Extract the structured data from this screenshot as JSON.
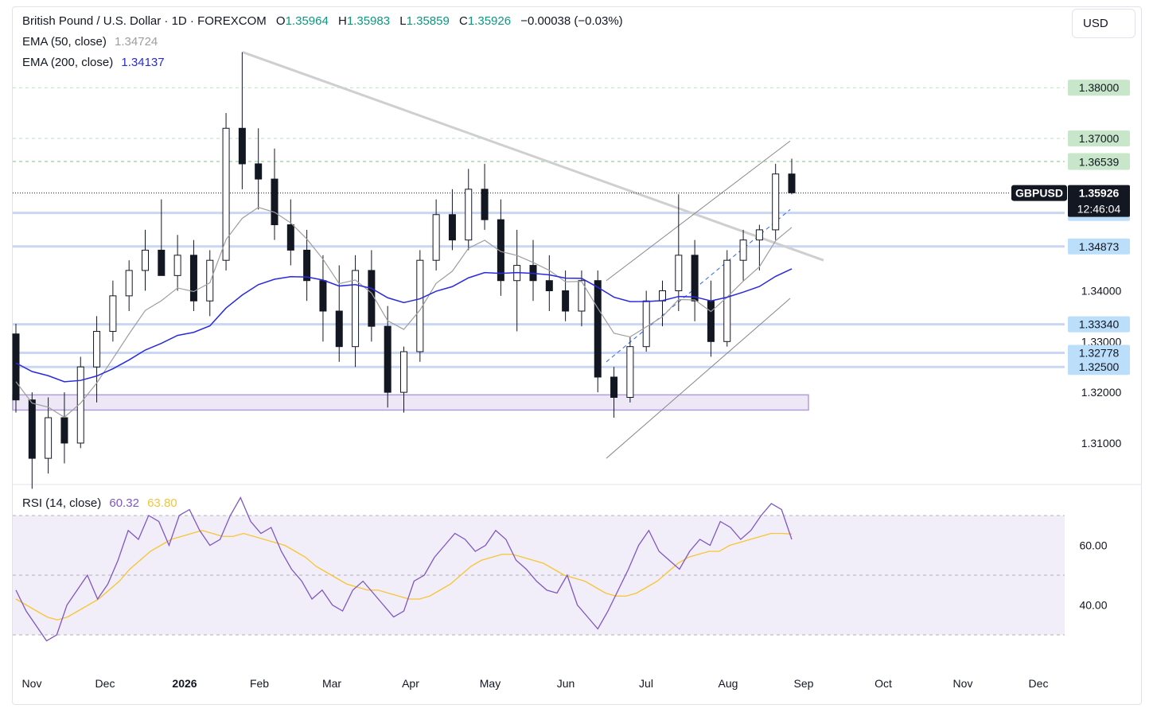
{
  "header": {
    "symbol_line": "British Pound / U.S. Dollar · 1D · FOREXCOM",
    "open_label": "O",
    "open": "1.35964",
    "high_label": "H",
    "high": "1.35983",
    "low_label": "L",
    "low": "1.35859",
    "close_label": "C",
    "close": "1.35926",
    "change": "−0.00038 (−0.03%)",
    "currency_button": "USD"
  },
  "indicators": {
    "ema50": {
      "label": "EMA (50, close)",
      "value": "1.34724",
      "color": "#9e9e9e"
    },
    "ema200": {
      "label": "EMA (200, close)",
      "value": "1.34137",
      "color": "#2929e0"
    },
    "rsi": {
      "label": "RSI (14, close)",
      "value": "60.32",
      "ma_value": "63.80",
      "rsi_color": "#7e57c2",
      "ma_color": "#f7c532"
    }
  },
  "chart_data": {
    "type": "candlestick",
    "symbol": "GBPUSD",
    "timeframe": "1D",
    "price_axis": {
      "min": 1.302,
      "max": 1.391,
      "ticks": [
        "1.31000",
        "1.32000",
        "1.33000",
        "1.34000"
      ]
    },
    "time_axis": [
      "Nov",
      "Dec",
      "2026",
      "Feb",
      "Mar",
      "Apr",
      "May",
      "Jun",
      "Jul",
      "Aug",
      "Sep",
      "Oct",
      "Nov",
      "Dec"
    ],
    "current": {
      "label": "GBPUSD",
      "price": "1.35926",
      "countdown": "12:46:04"
    },
    "levels": [
      {
        "price": "1.38000",
        "kind": "green"
      },
      {
        "price": "1.37000",
        "kind": "green"
      },
      {
        "price": "1.36554",
        "kind": "green"
      },
      {
        "price": "1.36539",
        "kind": "green"
      },
      {
        "price": "1.35533",
        "kind": "blue"
      },
      {
        "price": "1.34873",
        "kind": "blue"
      },
      {
        "price": "1.33340",
        "kind": "blue"
      },
      {
        "price": "1.32778",
        "kind": "blue"
      },
      {
        "price": "1.32500",
        "kind": "blue"
      }
    ],
    "support_zone": [
      1.3165,
      1.3195
    ],
    "candles_weekly_approx": [
      {
        "o": 1.3315,
        "h": 1.3335,
        "l": 1.316,
        "c": 1.3185
      },
      {
        "o": 1.3185,
        "h": 1.32,
        "l": 1.301,
        "c": 1.307
      },
      {
        "o": 1.307,
        "h": 1.319,
        "l": 1.304,
        "c": 1.315
      },
      {
        "o": 1.315,
        "h": 1.32,
        "l": 1.306,
        "c": 1.31
      },
      {
        "o": 1.31,
        "h": 1.327,
        "l": 1.309,
        "c": 1.325
      },
      {
        "o": 1.325,
        "h": 1.335,
        "l": 1.318,
        "c": 1.332
      },
      {
        "o": 1.332,
        "h": 1.342,
        "l": 1.33,
        "c": 1.339
      },
      {
        "o": 1.339,
        "h": 1.346,
        "l": 1.336,
        "c": 1.344
      },
      {
        "o": 1.344,
        "h": 1.352,
        "l": 1.34,
        "c": 1.348
      },
      {
        "o": 1.348,
        "h": 1.358,
        "l": 1.344,
        "c": 1.343
      },
      {
        "o": 1.343,
        "h": 1.351,
        "l": 1.34,
        "c": 1.347
      },
      {
        "o": 1.347,
        "h": 1.35,
        "l": 1.336,
        "c": 1.338
      },
      {
        "o": 1.338,
        "h": 1.348,
        "l": 1.335,
        "c": 1.346
      },
      {
        "o": 1.346,
        "h": 1.375,
        "l": 1.344,
        "c": 1.372
      },
      {
        "o": 1.372,
        "h": 1.387,
        "l": 1.36,
        "c": 1.365
      },
      {
        "o": 1.365,
        "h": 1.372,
        "l": 1.356,
        "c": 1.362
      },
      {
        "o": 1.362,
        "h": 1.368,
        "l": 1.35,
        "c": 1.353
      },
      {
        "o": 1.353,
        "h": 1.358,
        "l": 1.345,
        "c": 1.348
      },
      {
        "o": 1.348,
        "h": 1.352,
        "l": 1.338,
        "c": 1.342
      },
      {
        "o": 1.342,
        "h": 1.347,
        "l": 1.33,
        "c": 1.336
      },
      {
        "o": 1.336,
        "h": 1.345,
        "l": 1.326,
        "c": 1.329
      },
      {
        "o": 1.329,
        "h": 1.347,
        "l": 1.325,
        "c": 1.344
      },
      {
        "o": 1.344,
        "h": 1.348,
        "l": 1.33,
        "c": 1.333
      },
      {
        "o": 1.333,
        "h": 1.337,
        "l": 1.317,
        "c": 1.32
      },
      {
        "o": 1.32,
        "h": 1.329,
        "l": 1.316,
        "c": 1.328
      },
      {
        "o": 1.328,
        "h": 1.348,
        "l": 1.326,
        "c": 1.346
      },
      {
        "o": 1.346,
        "h": 1.358,
        "l": 1.344,
        "c": 1.355
      },
      {
        "o": 1.355,
        "h": 1.36,
        "l": 1.348,
        "c": 1.35
      },
      {
        "o": 1.35,
        "h": 1.364,
        "l": 1.348,
        "c": 1.36
      },
      {
        "o": 1.36,
        "h": 1.365,
        "l": 1.352,
        "c": 1.354
      },
      {
        "o": 1.354,
        "h": 1.358,
        "l": 1.339,
        "c": 1.342
      },
      {
        "o": 1.342,
        "h": 1.352,
        "l": 1.332,
        "c": 1.345
      },
      {
        "o": 1.345,
        "h": 1.35,
        "l": 1.338,
        "c": 1.342
      },
      {
        "o": 1.342,
        "h": 1.347,
        "l": 1.336,
        "c": 1.34
      },
      {
        "o": 1.34,
        "h": 1.344,
        "l": 1.334,
        "c": 1.336
      },
      {
        "o": 1.336,
        "h": 1.344,
        "l": 1.333,
        "c": 1.342
      },
      {
        "o": 1.342,
        "h": 1.344,
        "l": 1.32,
        "c": 1.323
      },
      {
        "o": 1.323,
        "h": 1.325,
        "l": 1.315,
        "c": 1.319
      },
      {
        "o": 1.319,
        "h": 1.331,
        "l": 1.318,
        "c": 1.329
      },
      {
        "o": 1.329,
        "h": 1.34,
        "l": 1.328,
        "c": 1.338
      },
      {
        "o": 1.338,
        "h": 1.342,
        "l": 1.333,
        "c": 1.34
      },
      {
        "o": 1.34,
        "h": 1.359,
        "l": 1.336,
        "c": 1.347
      },
      {
        "o": 1.347,
        "h": 1.35,
        "l": 1.334,
        "c": 1.338
      },
      {
        "o": 1.338,
        "h": 1.342,
        "l": 1.327,
        "c": 1.33
      },
      {
        "o": 1.33,
        "h": 1.348,
        "l": 1.329,
        "c": 1.346
      },
      {
        "o": 1.346,
        "h": 1.352,
        "l": 1.342,
        "c": 1.35
      },
      {
        "o": 1.35,
        "h": 1.353,
        "l": 1.344,
        "c": 1.352
      },
      {
        "o": 1.352,
        "h": 1.365,
        "l": 1.35,
        "c": 1.363
      },
      {
        "o": 1.363,
        "h": 1.366,
        "l": 1.359,
        "c": 1.3593
      }
    ],
    "rsi_axis": {
      "ticks": [
        "60.00",
        "40.00"
      ],
      "bands": [
        70,
        50,
        30
      ]
    },
    "rsi_values_approx": [
      45,
      38,
      33,
      28,
      30,
      40,
      45,
      50,
      42,
      47,
      55,
      65,
      62,
      70,
      68,
      60,
      70,
      72,
      65,
      60,
      62,
      70,
      76,
      68,
      64,
      66,
      58,
      52,
      48,
      42,
      45,
      40,
      38,
      45,
      48,
      44,
      40,
      36,
      38,
      48,
      50,
      56,
      60,
      64,
      62,
      58,
      60,
      65,
      62,
      55,
      52,
      48,
      45,
      44,
      50,
      40,
      36,
      32,
      38,
      45,
      52,
      60,
      65,
      58,
      55,
      52,
      58,
      62,
      60,
      68,
      66,
      62,
      65,
      70,
      74,
      72,
      62
    ],
    "rsi_ma_values_approx": [
      42,
      40,
      38,
      36,
      35,
      36,
      38,
      40,
      42,
      45,
      48,
      52,
      55,
      58,
      60,
      62,
      63,
      64,
      65,
      64,
      63,
      63,
      64,
      63,
      62,
      61,
      60,
      58,
      56,
      53,
      51,
      49,
      47,
      46,
      45,
      45,
      44,
      43,
      42,
      42,
      43,
      45,
      47,
      50,
      53,
      55,
      56,
      57,
      57,
      56,
      55,
      54,
      52,
      50,
      49,
      48,
      46,
      44,
      43,
      43,
      44,
      46,
      48,
      51,
      54,
      56,
      57,
      58,
      58,
      60,
      61,
      62,
      63,
      64,
      64,
      63.8
    ]
  }
}
